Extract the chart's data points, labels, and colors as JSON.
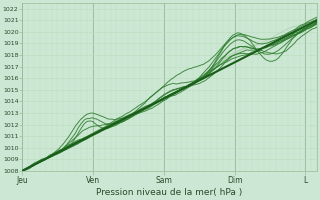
{
  "title": "",
  "xlabel": "Pression niveau de la mer( hPa )",
  "ylim": [
    1008,
    1022.5
  ],
  "ymin_data": 1008,
  "ymax_data": 1022,
  "yticks": [
    1008,
    1009,
    1010,
    1011,
    1012,
    1013,
    1014,
    1015,
    1016,
    1017,
    1018,
    1019,
    1020,
    1021,
    1022
  ],
  "xtick_labels": [
    "Jeu",
    "Ven",
    "Sam",
    "Dim",
    "L"
  ],
  "xtick_positions": [
    0,
    24,
    48,
    72,
    96
  ],
  "xlim": [
    0,
    100
  ],
  "bg_color": "#cce8d4",
  "grid_color_major": "#99bb99",
  "grid_color_minor": "#bbddbb",
  "line_color_dark": "#1a5c1a",
  "line_color_mid": "#2a7a2a",
  "line_color_light": "#aaccaa",
  "n_points": 200
}
